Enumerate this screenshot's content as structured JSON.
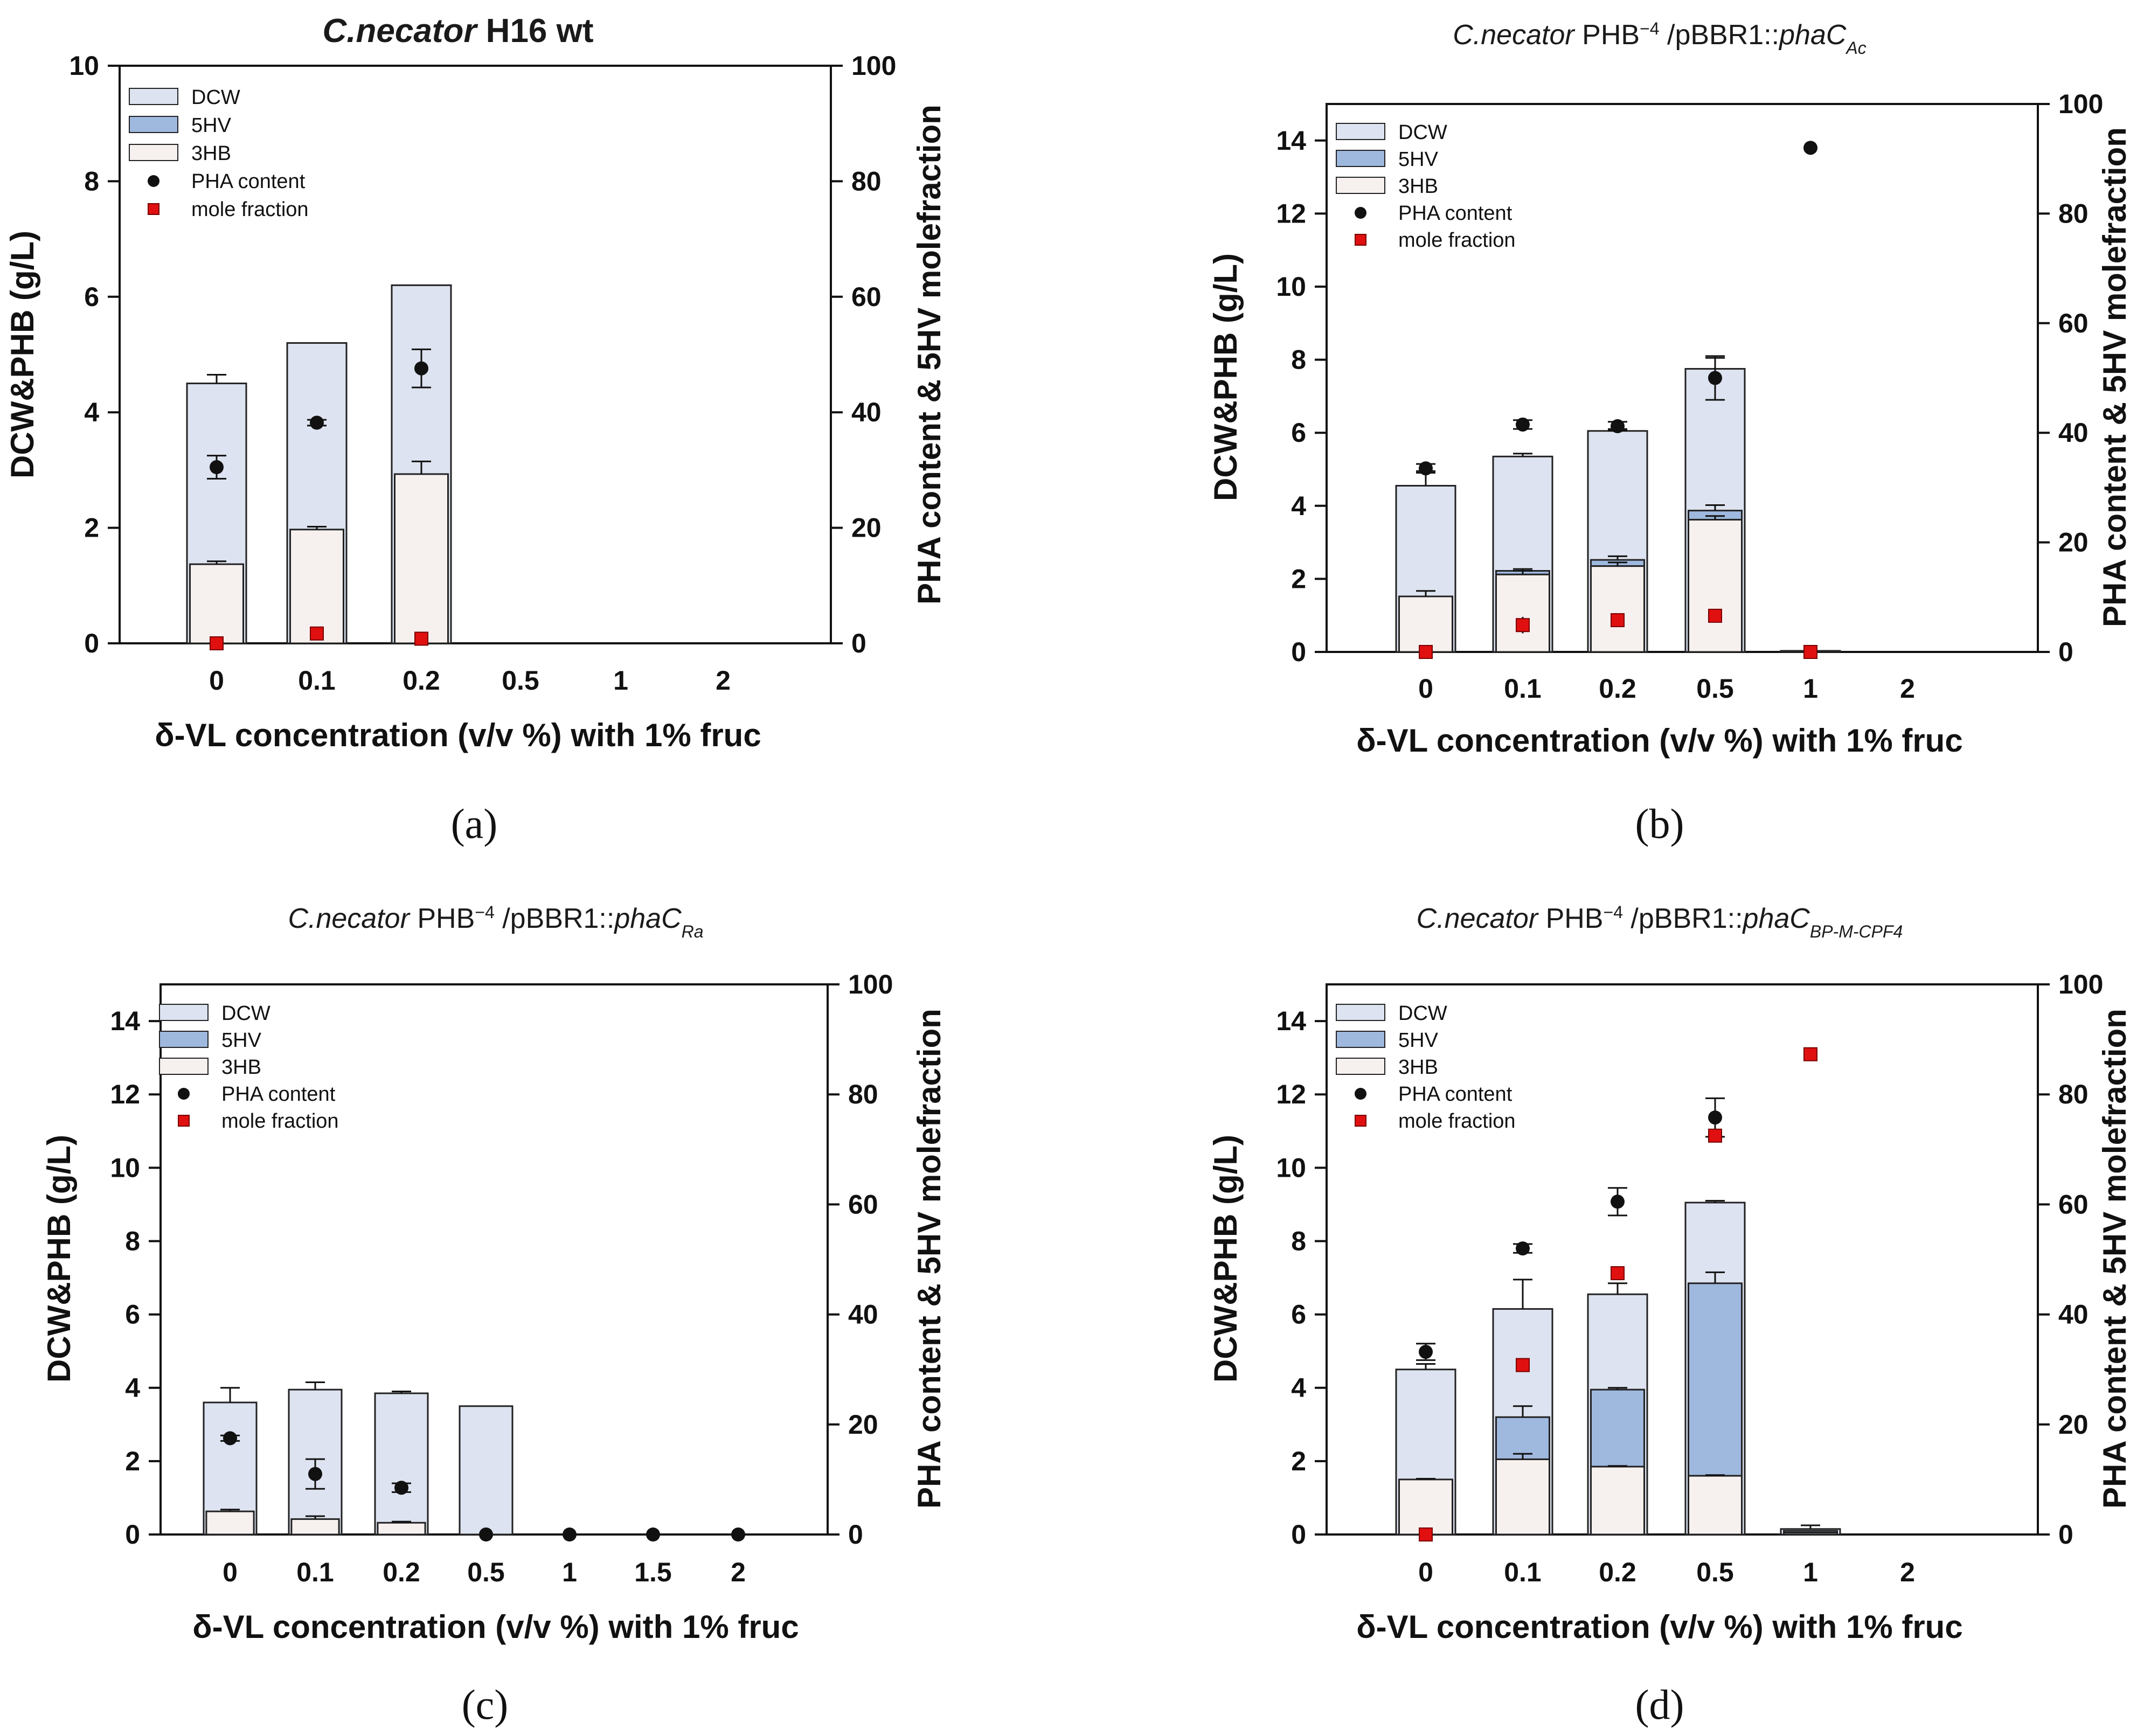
{
  "colors": {
    "dcw": "#dde3f0",
    "hv": "#9fb8de",
    "hb": "#f6f0ef",
    "dot": "#111111",
    "mole": "#e01010",
    "stroke": "#222222"
  },
  "legend": {
    "dcw": "DCW",
    "hv": "5HV",
    "hb": "3HB",
    "pha": "PHA content",
    "mole": "mole fraction"
  },
  "chart_data": [
    {
      "id": "a",
      "type": "bar",
      "panel_label": "(a)",
      "title": {
        "segments": [
          {
            "text": "C.necator",
            "style": "italic"
          },
          {
            "text": " H16 wt",
            "style": "normal"
          }
        ],
        "bold": true
      },
      "xlabel": "δ-VL concentration (v/v %) with 1% fruc",
      "ylabel": "DCW&PHB (g/L)",
      "y2label": "PHA content & 5HV molefraction",
      "categories": [
        "0",
        "0.1",
        "0.2",
        "0.5",
        "1",
        "2"
      ],
      "ylim": [
        0,
        10
      ],
      "yticks": [
        0,
        2,
        4,
        6,
        8,
        10
      ],
      "y2lim": [
        0,
        100
      ],
      "y2ticks": [
        0,
        20,
        40,
        60,
        80,
        100
      ],
      "dcw": [
        4.5,
        5.2,
        6.2,
        null,
        null,
        null
      ],
      "dcw_err": [
        0.15,
        0,
        0,
        null,
        null,
        null
      ],
      "hb": [
        1.37,
        1.97,
        2.93,
        null,
        null,
        null
      ],
      "hb_err": [
        0.05,
        0.05,
        0.22,
        null,
        null,
        null
      ],
      "hv": [
        0,
        0,
        0,
        null,
        null,
        null
      ],
      "hv_err": [
        0,
        0,
        0,
        null,
        null,
        null
      ],
      "pha_content": [
        30.5,
        38.2,
        47.6,
        null,
        null,
        null
      ],
      "pha_err": [
        2.0,
        0.5,
        3.3,
        null,
        null,
        null
      ],
      "mole_fraction": [
        0,
        1.7,
        0.8,
        null,
        null,
        null
      ],
      "mole_err": [
        0,
        0.4,
        0.2,
        null,
        null,
        null
      ]
    },
    {
      "id": "b",
      "type": "bar",
      "panel_label": "(b)",
      "title": {
        "segments": [
          {
            "text": "C.necator",
            "style": "italic"
          },
          {
            "text": " PHB",
            "style": "normal"
          },
          {
            "text": "−4",
            "style": "sup"
          },
          {
            "text": " /pBBR1::",
            "style": "normal"
          },
          {
            "text": "phaC",
            "style": "italic"
          },
          {
            "text": "Ac",
            "style": "sub"
          }
        ],
        "bold": false
      },
      "xlabel": "δ-VL concentration (v/v %) with 1% fruc",
      "ylabel": "DCW&PHB (g/L)",
      "y2label": "PHA content & 5HV molefraction",
      "categories": [
        "0",
        "0.1",
        "0.2",
        "0.5",
        "1",
        "2"
      ],
      "ylim": [
        0,
        15
      ],
      "yticks": [
        0,
        2,
        4,
        6,
        8,
        10,
        12,
        14
      ],
      "y2lim": [
        0,
        100
      ],
      "y2ticks": [
        0,
        20,
        40,
        60,
        80,
        100
      ],
      "dcw": [
        4.55,
        5.35,
        6.05,
        7.75,
        0.03,
        null
      ],
      "dcw_err": [
        0.4,
        0.08,
        0.05,
        0.3,
        0,
        null
      ],
      "hb": [
        1.52,
        2.12,
        2.35,
        3.62,
        0,
        null
      ],
      "hb_err": [
        0.15,
        0.1,
        0.1,
        0.1,
        0,
        null
      ],
      "hv": [
        0,
        0.1,
        0.17,
        0.25,
        0,
        null
      ],
      "hv_err": [
        0,
        0.05,
        0.1,
        0.15,
        0,
        null
      ],
      "pha_content": [
        33.5,
        41.5,
        41.2,
        50.0,
        92.0,
        null
      ],
      "pha_err": [
        0.8,
        0.8,
        0.8,
        4.0,
        0,
        null
      ],
      "mole_fraction": [
        0,
        4.9,
        5.8,
        6.6,
        0,
        null
      ],
      "mole_err": [
        0,
        1.5,
        0.5,
        0.5,
        0,
        null
      ]
    },
    {
      "id": "c",
      "type": "bar",
      "panel_label": "(c)",
      "title": {
        "segments": [
          {
            "text": "C.necator",
            "style": "italic"
          },
          {
            "text": " PHB",
            "style": "normal"
          },
          {
            "text": "−4",
            "style": "sup"
          },
          {
            "text": " /pBBR1::",
            "style": "normal"
          },
          {
            "text": "phaC",
            "style": "italic"
          },
          {
            "text": "Ra",
            "style": "sub"
          }
        ],
        "bold": false
      },
      "xlabel": "δ-VL concentration (v/v %) with 1% fruc",
      "ylabel": "DCW&PHB (g/L)",
      "y2label": "PHA content & 5HV molefraction",
      "categories": [
        "0",
        "0.1",
        "0.2",
        "0.5",
        "1",
        "1.5",
        "2"
      ],
      "ylim": [
        0,
        15
      ],
      "yticks": [
        0,
        2,
        4,
        6,
        8,
        10,
        12,
        14
      ],
      "y2lim": [
        0,
        100
      ],
      "y2ticks": [
        0,
        20,
        40,
        60,
        80,
        100
      ],
      "dcw": [
        3.6,
        3.95,
        3.85,
        3.5,
        null,
        null,
        null
      ],
      "dcw_err": [
        0.4,
        0.2,
        0.05,
        0,
        null,
        null,
        null
      ],
      "hb": [
        0.63,
        0.42,
        0.32,
        0,
        null,
        null,
        null
      ],
      "hb_err": [
        0.05,
        0.08,
        0.03,
        0,
        null,
        null,
        null
      ],
      "hv": [
        0,
        0,
        0,
        0,
        null,
        null,
        null
      ],
      "hv_err": [
        0,
        0,
        0,
        0,
        null,
        null,
        null
      ],
      "pha_content": [
        17.5,
        11.0,
        8.5,
        0,
        0,
        0,
        0
      ],
      "pha_err": [
        0.5,
        2.7,
        0.8,
        0,
        0,
        0,
        0
      ],
      "mole_fraction": [
        null,
        null,
        null,
        null,
        null,
        null,
        null
      ],
      "mole_err": [
        null,
        null,
        null,
        null,
        null,
        null,
        null
      ]
    },
    {
      "id": "d",
      "type": "bar",
      "panel_label": "(d)",
      "title": {
        "segments": [
          {
            "text": "C.necator",
            "style": "italic"
          },
          {
            "text": " PHB",
            "style": "normal"
          },
          {
            "text": "−4",
            "style": "sup"
          },
          {
            "text": " /pBBR1::",
            "style": "normal"
          },
          {
            "text": "phaC",
            "style": "italic"
          },
          {
            "text": "BP-M-CPF4",
            "style": "sub"
          }
        ],
        "bold": false
      },
      "xlabel": "δ-VL concentration (v/v %) with 1% fruc",
      "ylabel": "DCW&PHB (g/L)",
      "y2label": "PHA content & 5HV molefraction",
      "categories": [
        "0",
        "0.1",
        "0.2",
        "0.5",
        "1",
        "2"
      ],
      "ylim": [
        0,
        15
      ],
      "yticks": [
        0,
        2,
        4,
        6,
        8,
        10,
        12,
        14
      ],
      "y2lim": [
        0,
        100
      ],
      "y2ticks": [
        0,
        20,
        40,
        60,
        80,
        100
      ],
      "dcw": [
        4.5,
        6.15,
        6.55,
        9.05,
        0.15,
        null
      ],
      "dcw_err": [
        0.15,
        0.8,
        0.3,
        0.05,
        0.1,
        null
      ],
      "hb": [
        1.5,
        2.05,
        1.85,
        1.6,
        0.05,
        null
      ],
      "hb_err": [
        0.02,
        0.15,
        0.02,
        0.02,
        0,
        null
      ],
      "hv": [
        0,
        1.15,
        2.1,
        5.25,
        0.05,
        null
      ],
      "hv_err": [
        0,
        0.3,
        0.05,
        0.3,
        0,
        null
      ],
      "pha_content": [
        33.2,
        52.0,
        60.5,
        75.8,
        null,
        null
      ],
      "pha_err": [
        1.5,
        0.8,
        2.5,
        3.5,
        null,
        null
      ],
      "mole_fraction": [
        0,
        30.8,
        47.5,
        72.5,
        87.3,
        null
      ],
      "mole_err": [
        0,
        0.8,
        0.8,
        1.0,
        0.5,
        null
      ]
    }
  ]
}
